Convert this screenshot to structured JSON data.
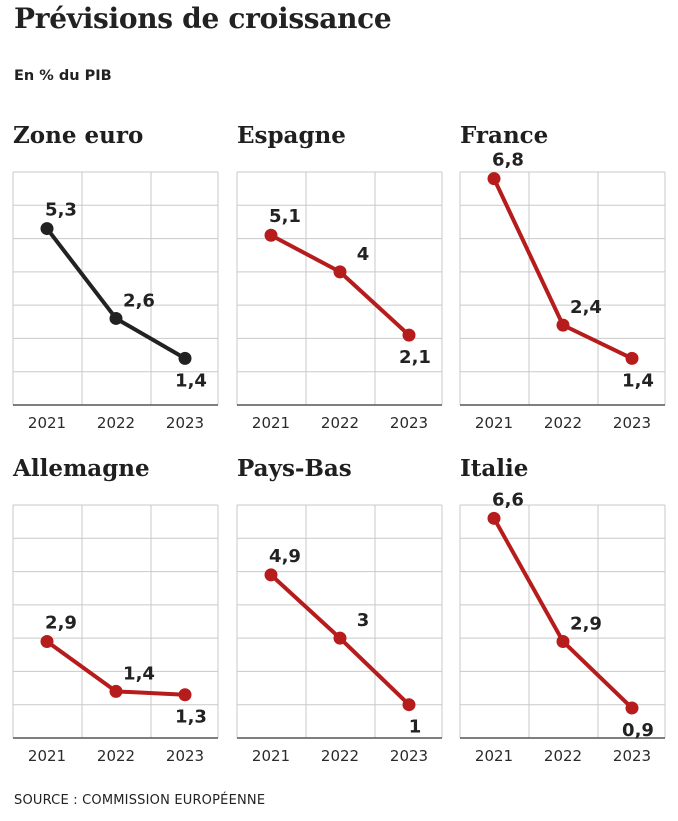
{
  "title": "Prévisions de croissance",
  "subtitle": "En % du PIB",
  "source": "SOURCE : COMMISSION EUROPÉENNE",
  "colors": {
    "black_series": "#222222",
    "red_series": "#b71c1c",
    "grid": "#c9c9c9"
  },
  "chart_data": [
    {
      "type": "line",
      "title": "Zone euro",
      "x": [
        "2021",
        "2022",
        "2023"
      ],
      "series": [
        {
          "values": [
            5.3,
            2.6,
            1.4
          ],
          "color": "#222222"
        }
      ],
      "data_labels": [
        "5,3",
        "2,6",
        "1,4"
      ],
      "ylim": [
        0,
        7.0
      ],
      "grid": true
    },
    {
      "type": "line",
      "title": "Espagne",
      "x": [
        "2021",
        "2022",
        "2023"
      ],
      "series": [
        {
          "values": [
            5.1,
            4.0,
            2.1
          ],
          "color": "#b71c1c"
        }
      ],
      "data_labels": [
        "5,1",
        "4",
        "2,1"
      ],
      "ylim": [
        0,
        7.0
      ],
      "grid": true
    },
    {
      "type": "line",
      "title": "France",
      "x": [
        "2021",
        "2022",
        "2023"
      ],
      "series": [
        {
          "values": [
            6.8,
            2.4,
            1.4
          ],
          "color": "#b71c1c"
        }
      ],
      "data_labels": [
        "6,8",
        "2,4",
        "1,4"
      ],
      "ylim": [
        0,
        7.0
      ],
      "grid": true
    },
    {
      "type": "line",
      "title": "Allemagne",
      "x": [
        "2021",
        "2022",
        "2023"
      ],
      "series": [
        {
          "values": [
            2.9,
            1.4,
            1.3
          ],
          "color": "#b71c1c"
        }
      ],
      "data_labels": [
        "2,9",
        "1,4",
        "1,3"
      ],
      "ylim": [
        0,
        7.0
      ],
      "grid": true
    },
    {
      "type": "line",
      "title": "Pays-Bas",
      "x": [
        "2021",
        "2022",
        "2023"
      ],
      "series": [
        {
          "values": [
            4.9,
            3.0,
            1.0
          ],
          "color": "#b71c1c"
        }
      ],
      "data_labels": [
        "4,9",
        "3",
        "1"
      ],
      "ylim": [
        0,
        7.0
      ],
      "grid": true
    },
    {
      "type": "line",
      "title": "Italie",
      "x": [
        "2021",
        "2022",
        "2023"
      ],
      "series": [
        {
          "values": [
            6.6,
            2.9,
            0.9
          ],
          "color": "#b71c1c"
        }
      ],
      "data_labels": [
        "6,6",
        "2,9",
        "0,9"
      ],
      "ylim": [
        0,
        7.0
      ],
      "grid": true
    }
  ]
}
